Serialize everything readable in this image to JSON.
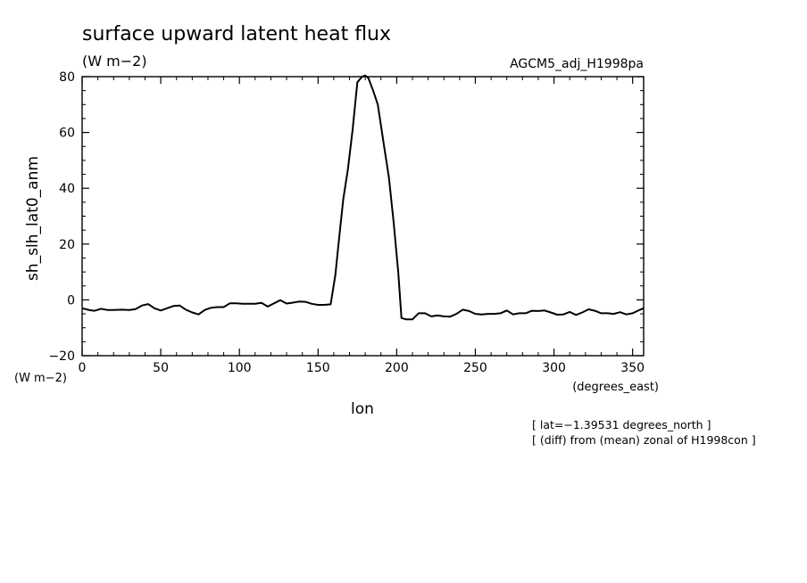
{
  "header": {
    "title": "surface upward latent heat flux",
    "units": "(W m−2)",
    "run_name": "AGCM5_adj_H1998pa"
  },
  "axes": {
    "ylabel": "sh_slh_lat0_anm",
    "yunits": "(W m−2)",
    "xlabel": "lon",
    "xunits": "(degrees_east)"
  },
  "notes": {
    "line1": "[ lat=−1.39531 degrees_north ]",
    "line2": "[ (diff) from (mean) zonal of H1998con ]"
  },
  "chart_data": {
    "type": "line",
    "title": "surface upward latent heat flux",
    "xlabel": "lon",
    "ylabel": "sh_slh_lat0_anm",
    "xlim": [
      0,
      357
    ],
    "ylim": [
      -20,
      80
    ],
    "xticks": [
      0,
      50,
      100,
      150,
      200,
      250,
      300,
      350
    ],
    "yticks": [
      -20,
      0,
      20,
      40,
      60,
      80
    ],
    "grid": false,
    "series": [
      {
        "x": [
          0,
          5,
          8,
          12,
          16,
          20,
          25,
          30,
          34,
          38,
          42,
          46,
          50,
          54,
          58,
          62,
          66,
          70,
          74,
          78,
          82,
          86,
          90,
          94,
          98,
          102,
          106,
          110,
          114,
          118,
          122,
          126,
          130,
          134,
          138,
          142,
          146,
          150,
          154,
          158,
          161,
          163,
          166,
          169,
          172,
          175,
          178,
          180,
          182,
          185,
          188,
          192,
          195,
          198,
          201,
          203,
          206,
          210,
          214,
          218,
          222,
          226,
          230,
          234,
          238,
          242,
          246,
          250,
          254,
          258,
          262,
          266,
          270,
          274,
          278,
          282,
          286,
          290,
          294,
          298,
          302,
          306,
          310,
          314,
          318,
          322,
          326,
          330,
          334,
          338,
          342,
          346,
          350,
          354,
          357
        ],
        "y": [
          -3.0,
          -3.7,
          -3.9,
          -3.2,
          -3.6,
          -3.6,
          -3.5,
          -3.6,
          -3.3,
          -2.0,
          -1.5,
          -3.0,
          -3.8,
          -3.0,
          -2.2,
          -2.0,
          -3.5,
          -4.5,
          -5.2,
          -3.6,
          -2.8,
          -2.6,
          -2.6,
          -1.2,
          -1.2,
          -1.4,
          -1.4,
          -1.4,
          -1.1,
          -2.4,
          -1.2,
          -0.1,
          -1.3,
          -1.0,
          -0.6,
          -0.7,
          -1.4,
          -1.8,
          -1.8,
          -1.6,
          9.0,
          20.0,
          36.0,
          47.0,
          61.0,
          78.0,
          80.0,
          80.4,
          79.5,
          75.0,
          70.0,
          55.0,
          44.0,
          28.0,
          10.0,
          -6.5,
          -7.0,
          -7.0,
          -4.8,
          -4.8,
          -5.9,
          -5.6,
          -5.9,
          -6.0,
          -5.0,
          -3.5,
          -4.0,
          -5.0,
          -5.2,
          -5.0,
          -5.0,
          -4.8,
          -3.8,
          -5.2,
          -4.8,
          -4.8,
          -3.9,
          -4.0,
          -3.8,
          -4.5,
          -5.3,
          -5.2,
          -4.3,
          -5.4,
          -4.5,
          -3.4,
          -3.9,
          -4.8,
          -4.8,
          -5.0,
          -4.4,
          -5.2,
          -4.8,
          -3.7,
          -3.0
        ]
      }
    ]
  }
}
